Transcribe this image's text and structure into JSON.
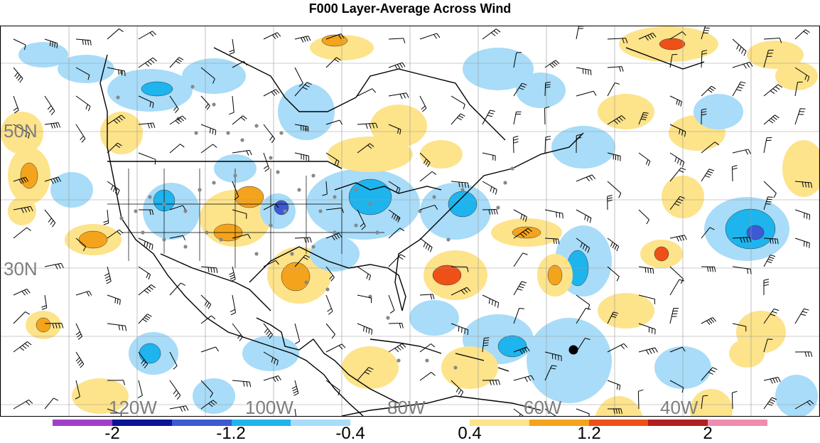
{
  "title": "F000 Layer-Average Across Wind",
  "lat_labels": [
    "50N",
    "30N"
  ],
  "lon_labels": [
    "120W",
    "100W",
    "80W",
    "60W",
    "40W"
  ],
  "colorbar": {
    "colors": [
      "#a040c8",
      "#0a1496",
      "#3c5ad2",
      "#1eb4ee",
      "#a8dcf8",
      "#ffffff",
      "#ffffff",
      "#fde38a",
      "#f4a41c",
      "#ee5018",
      "#b02020",
      "#f08cb0"
    ],
    "tick_labels": [
      "-2",
      "-1.2",
      "-0.4",
      "0.4",
      "1.2",
      "2"
    ]
  },
  "colors": {
    "neg_light": "#a8dcf8",
    "neg_mid": "#1eb4ee",
    "neg_strong": "#3c5ad2",
    "pos_light": "#fde38a",
    "pos_mid": "#f4a41c",
    "pos_strong": "#ee5018",
    "station_dot": "#888888",
    "storm_marker": "#000000",
    "grid": "#999999"
  },
  "icons": {
    "station": "gray-dot",
    "storm": "black-dot",
    "wind": "wind-barb"
  }
}
